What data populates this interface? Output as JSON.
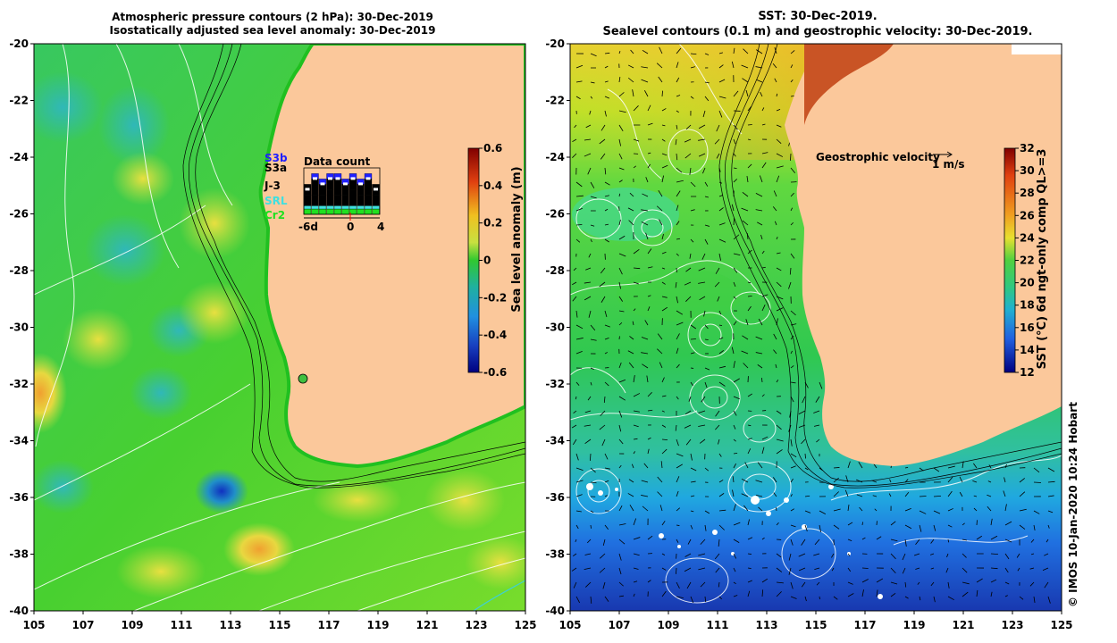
{
  "titles": {
    "left_line1": "Atmospheric pressure contours (2 hPa): 30-Dec-2019",
    "left_line2": "Isostatically adjusted sea level anomaly: 30-Dec-2019",
    "right_line1": "SST: 30-Dec-2019.",
    "right_line2": "Sealevel contours (0.1 m) and geostrophic velocity: 30-Dec-2019."
  },
  "axes": {
    "lat_ticks": [
      "-20",
      "-22",
      "-24",
      "-26",
      "-28",
      "-30",
      "-32",
      "-34",
      "-36",
      "-38",
      "-40"
    ],
    "lon_ticks": [
      "105",
      "107",
      "109",
      "111",
      "113",
      "115",
      "117",
      "119",
      "121",
      "123",
      "125"
    ]
  },
  "left_colorbar": {
    "label": "Sea level anomaly (m)",
    "ticks": [
      "0.6",
      "0.4",
      "0.2",
      "0",
      "-0.2",
      "-0.4",
      "-0.6"
    ]
  },
  "right_colorbar": {
    "label": "SST (°C) 6d ngt-only comp QL>=3",
    "ticks": [
      "32",
      "30",
      "28",
      "26",
      "24",
      "22",
      "20",
      "18",
      "16",
      "14",
      "12"
    ]
  },
  "data_count": {
    "title": "Data count",
    "satellites": [
      "S3b",
      "S3a",
      "J-3",
      "SRL",
      "Cr2"
    ],
    "satellite_colors": [
      "#2020ff",
      "#000000",
      "#000000",
      "#40e0e0",
      "#20e020"
    ],
    "x_ticks": [
      "-6d",
      "0",
      "4"
    ]
  },
  "geostrophic": {
    "label": "Geostrophic velocity",
    "scale_label": "1 m/s"
  },
  "credit": "© IMOS 10-Jan-2020 10:24 Hobart",
  "colors": {
    "land": "#fbc89b",
    "ocean_mid": "#3cd23c",
    "coast_outline": "#000000"
  }
}
